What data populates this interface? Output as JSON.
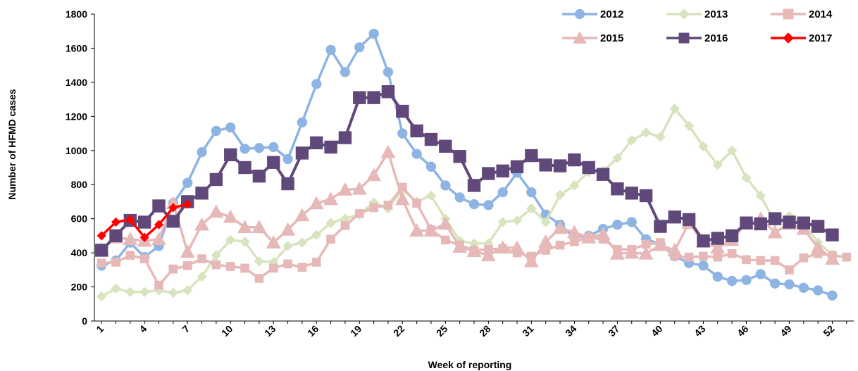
{
  "chart_data": {
    "type": "line",
    "title": "",
    "xlabel": "Week of reporting",
    "ylabel": "Number of HFMD cases",
    "xlim": [
      1,
      53
    ],
    "ylim": [
      0,
      1800
    ],
    "yticks": [
      0,
      200,
      400,
      600,
      800,
      1000,
      1200,
      1400,
      1600,
      1800
    ],
    "xticks": [
      1,
      4,
      7,
      10,
      13,
      16,
      19,
      22,
      25,
      28,
      31,
      34,
      37,
      40,
      43,
      46,
      49,
      52
    ],
    "grid": false,
    "legend_position": "top-right",
    "series": [
      {
        "name": "2012",
        "color": "#8EB4E3",
        "marker": "circle",
        "x": [
          1,
          2,
          3,
          4,
          5,
          6,
          7,
          8,
          9,
          10,
          11,
          12,
          13,
          14,
          15,
          16,
          17,
          18,
          19,
          20,
          21,
          22,
          23,
          24,
          25,
          26,
          27,
          28,
          29,
          30,
          31,
          32,
          33,
          34,
          35,
          36,
          37,
          38,
          39,
          40,
          41,
          42,
          43,
          44,
          45,
          46,
          47,
          48,
          49,
          50,
          51,
          52
        ],
        "values": [
          325,
          355,
          460,
          375,
          440,
          690,
          810,
          990,
          1115,
          1135,
          1010,
          1015,
          1020,
          950,
          1165,
          1390,
          1590,
          1460,
          1605,
          1685,
          1460,
          1100,
          980,
          905,
          795,
          725,
          685,
          680,
          755,
          870,
          755,
          625,
          565,
          490,
          500,
          540,
          565,
          580,
          480,
          450,
          380,
          340,
          325,
          260,
          235,
          240,
          275,
          220,
          215,
          195,
          180,
          150
        ]
      },
      {
        "name": "2013",
        "color": "#D7E4BD",
        "marker": "diamond",
        "x": [
          1,
          2,
          3,
          4,
          5,
          6,
          7,
          8,
          9,
          10,
          11,
          12,
          13,
          14,
          15,
          16,
          17,
          18,
          19,
          20,
          21,
          22,
          23,
          24,
          25,
          26,
          27,
          28,
          29,
          30,
          31,
          32,
          33,
          34,
          35,
          36,
          37,
          38,
          39,
          40,
          41,
          42,
          43,
          44,
          45,
          46,
          47,
          48,
          49,
          50,
          51,
          52
        ],
        "values": [
          145,
          190,
          170,
          170,
          180,
          165,
          180,
          260,
          385,
          475,
          465,
          350,
          345,
          440,
          460,
          505,
          575,
          600,
          625,
          695,
          660,
          770,
          700,
          735,
          600,
          470,
          455,
          455,
          580,
          590,
          660,
          580,
          740,
          795,
          875,
          880,
          955,
          1060,
          1105,
          1080,
          1245,
          1145,
          1025,
          915,
          1000,
          840,
          735,
          580,
          615,
          575,
          460,
          390
        ]
      },
      {
        "name": "2014",
        "color": "#E6B9B8",
        "marker": "square",
        "x": [
          1,
          2,
          3,
          4,
          5,
          6,
          7,
          8,
          9,
          10,
          11,
          12,
          13,
          14,
          15,
          16,
          17,
          18,
          19,
          20,
          21,
          22,
          23,
          24,
          25,
          26,
          27,
          28,
          29,
          30,
          31,
          32,
          33,
          34,
          35,
          36,
          37,
          38,
          39,
          40,
          41,
          42,
          43,
          44,
          45,
          46,
          47,
          48,
          49,
          50,
          51,
          52,
          53
        ],
        "values": [
          340,
          345,
          385,
          365,
          210,
          305,
          325,
          365,
          330,
          320,
          310,
          250,
          310,
          335,
          315,
          345,
          480,
          560,
          630,
          665,
          680,
          785,
          690,
          535,
          475,
          445,
          415,
          420,
          425,
          400,
          380,
          415,
          445,
          465,
          490,
          480,
          420,
          420,
          450,
          460,
          380,
          375,
          380,
          375,
          395,
          360,
          355,
          355,
          300,
          370,
          395,
          385,
          375
        ]
      },
      {
        "name": "2015",
        "color": "#E6B9B8",
        "marker": "triangle",
        "x": [
          1,
          2,
          3,
          4,
          5,
          6,
          7,
          8,
          9,
          10,
          11,
          12,
          13,
          14,
          15,
          16,
          17,
          18,
          19,
          20,
          21,
          22,
          23,
          24,
          25,
          26,
          27,
          28,
          29,
          30,
          31,
          32,
          33,
          34,
          35,
          36,
          37,
          38,
          39,
          40,
          41,
          42,
          43,
          44,
          45,
          46,
          47,
          48,
          49,
          50,
          51,
          52
        ],
        "values": [
          420,
          490,
          480,
          470,
          480,
          690,
          405,
          565,
          640,
          610,
          550,
          550,
          460,
          535,
          620,
          690,
          715,
          770,
          775,
          855,
          990,
          715,
          530,
          530,
          570,
          435,
          410,
          385,
          430,
          430,
          350,
          465,
          545,
          520,
          490,
          510,
          395,
          400,
          395,
          445,
          415,
          575,
          465,
          430,
          475,
          575,
          600,
          520,
          570,
          540,
          430,
          365
        ]
      },
      {
        "name": "2016",
        "color": "#60497A",
        "marker": "square",
        "x": [
          1,
          2,
          3,
          4,
          5,
          6,
          7,
          8,
          9,
          10,
          11,
          12,
          13,
          14,
          15,
          16,
          17,
          18,
          19,
          20,
          21,
          22,
          23,
          24,
          25,
          26,
          27,
          28,
          29,
          30,
          31,
          32,
          33,
          34,
          35,
          36,
          37,
          38,
          39,
          40,
          41,
          42,
          43,
          44,
          45,
          46,
          47,
          48,
          49,
          50,
          51,
          52
        ],
        "values": [
          415,
          500,
          590,
          580,
          675,
          585,
          700,
          750,
          830,
          975,
          900,
          850,
          930,
          805,
          985,
          1045,
          1020,
          1075,
          1310,
          1310,
          1345,
          1230,
          1115,
          1065,
          1025,
          965,
          795,
          865,
          880,
          905,
          970,
          915,
          910,
          945,
          900,
          860,
          775,
          750,
          735,
          555,
          610,
          595,
          470,
          485,
          500,
          575,
          570,
          600,
          580,
          575,
          555,
          505
        ]
      },
      {
        "name": "2017",
        "color": "#FF0000",
        "marker": "diamond",
        "x": [
          1,
          2,
          3,
          4,
          5,
          6,
          7
        ],
        "values": [
          500,
          580,
          595,
          490,
          565,
          665,
          685
        ]
      }
    ]
  }
}
